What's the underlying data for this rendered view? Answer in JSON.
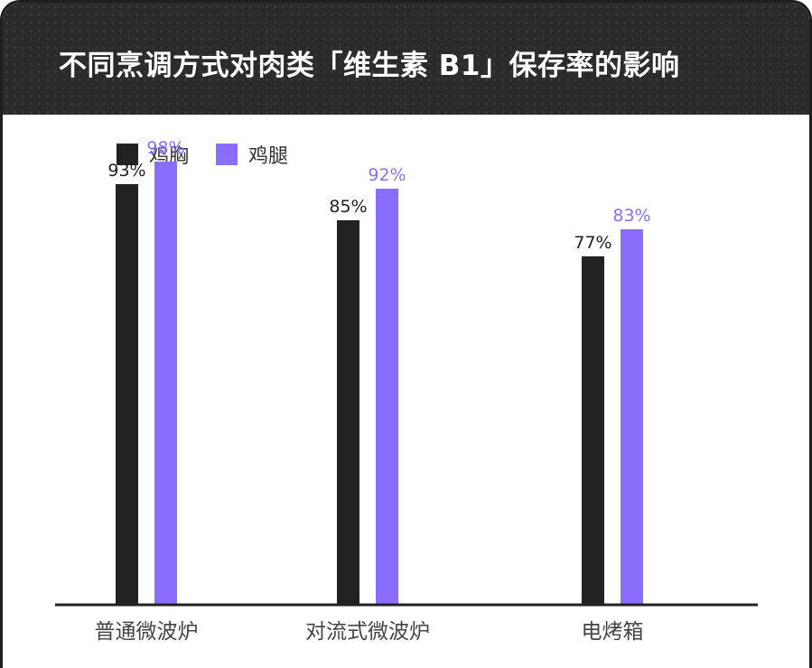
{
  "header": {
    "title": "不同烹调方式对肉类「维生素 B1」保存率的影响"
  },
  "colors": {
    "chicken_breast": "#222222",
    "chicken_thigh": "#8a6dff",
    "axis": "#222222",
    "header_bg": "#2b2b2b"
  },
  "chart_data": {
    "type": "bar",
    "title": "不同烹调方式对肉类「维生素 B1」保存率的影响",
    "categories": [
      "普通微波炉",
      "对流式微波炉",
      "电烤箱"
    ],
    "series": [
      {
        "name": "鸡胸",
        "values": [
          93,
          85,
          77
        ],
        "labels": [
          "93%",
          "85%",
          "77%"
        ]
      },
      {
        "name": "鸡腿",
        "values": [
          98,
          92,
          83
        ],
        "labels": [
          "98%",
          "92%",
          "83%"
        ]
      }
    ],
    "ylim": [
      0,
      100
    ],
    "unit": "%",
    "legend": "top-left",
    "grid": false
  }
}
